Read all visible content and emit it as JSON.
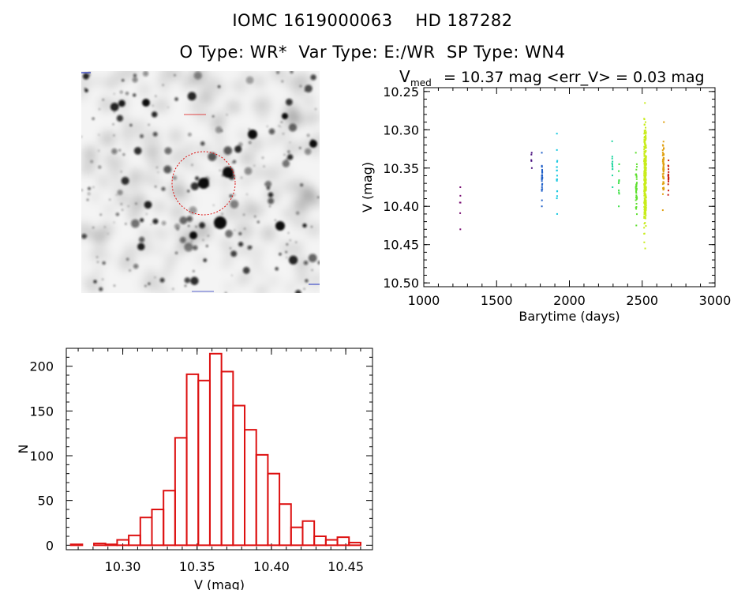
{
  "header": {
    "name_id": "IOMC 1619000063",
    "name_hd": "HD 187282",
    "otype_label": "O Type:",
    "otype": "WR*",
    "vartype_label": "Var Type:",
    "vartype": "E:/WR",
    "sptype_label": "SP Type:",
    "sptype": "WN4"
  },
  "lightcurve_header": {
    "v": "V",
    "sub": "med",
    "rest": " = 10.37 mag <err_V> = 0.03 mag"
  },
  "colors": {
    "histogram": "#dd1111",
    "circle": "#dd1111"
  },
  "chart_data": [
    {
      "type": "scatter",
      "title": "V_med = 10.37 mag <err_V> = 0.03 mag",
      "xlabel": "Barytime (days)",
      "ylabel": "V (mag)",
      "xlim": [
        1000,
        3000
      ],
      "ylim": [
        10.505,
        10.245
      ],
      "y_inverted": true,
      "xticks": [
        1000,
        1500,
        2000,
        2500,
        3000
      ],
      "yticks": [
        "10.25",
        "10.30",
        "10.35",
        "10.40",
        "10.45",
        "10.50"
      ],
      "series": [
        {
          "color": "#7a0f73",
          "x": 1250,
          "ymin": 10.375,
          "ymax": 10.43,
          "n": 6
        },
        {
          "color": "#4b1380",
          "x": 1740,
          "ymin": 10.33,
          "ymax": 10.35,
          "n": 5
        },
        {
          "color": "#1f5fc8",
          "x": 1812,
          "ymin": 10.33,
          "ymax": 10.4,
          "n": 28
        },
        {
          "color": "#17c8e0",
          "x": 1915,
          "ymin": 10.305,
          "ymax": 10.41,
          "n": 18
        },
        {
          "color": "#1fd5a0",
          "x": 2295,
          "ymin": 10.315,
          "ymax": 10.375,
          "n": 12
        },
        {
          "color": "#3ce045",
          "x": 2340,
          "ymin": 10.345,
          "ymax": 10.4,
          "n": 10
        },
        {
          "color": "#5fe030",
          "x": 2460,
          "ymin": 10.33,
          "ymax": 10.425,
          "n": 40
        },
        {
          "color": "#c8ec1a",
          "x": 2520,
          "ymin": 10.265,
          "ymax": 10.455,
          "n": 300
        },
        {
          "color": "#e0a010",
          "x": 2645,
          "ymin": 10.29,
          "ymax": 10.405,
          "n": 60
        },
        {
          "color": "#c81a10",
          "x": 2680,
          "ymin": 10.34,
          "ymax": 10.385,
          "n": 20
        }
      ]
    },
    {
      "type": "bar",
      "title": "",
      "xlabel": "V (mag)",
      "ylabel": "N",
      "xlim": [
        10.262,
        10.468
      ],
      "ylim": [
        -5,
        220
      ],
      "bin_start": 10.265,
      "bin_width": 0.0078,
      "values": [
        1,
        0,
        2,
        1,
        6,
        11,
        31,
        40,
        61,
        120,
        191,
        184,
        214,
        194,
        156,
        129,
        101,
        80,
        46,
        20,
        27,
        10,
        6,
        9,
        3
      ],
      "xticks": [
        "10.30",
        "10.35",
        "10.40",
        "10.45"
      ],
      "yticks": [
        0,
        50,
        100,
        150,
        200
      ]
    }
  ]
}
